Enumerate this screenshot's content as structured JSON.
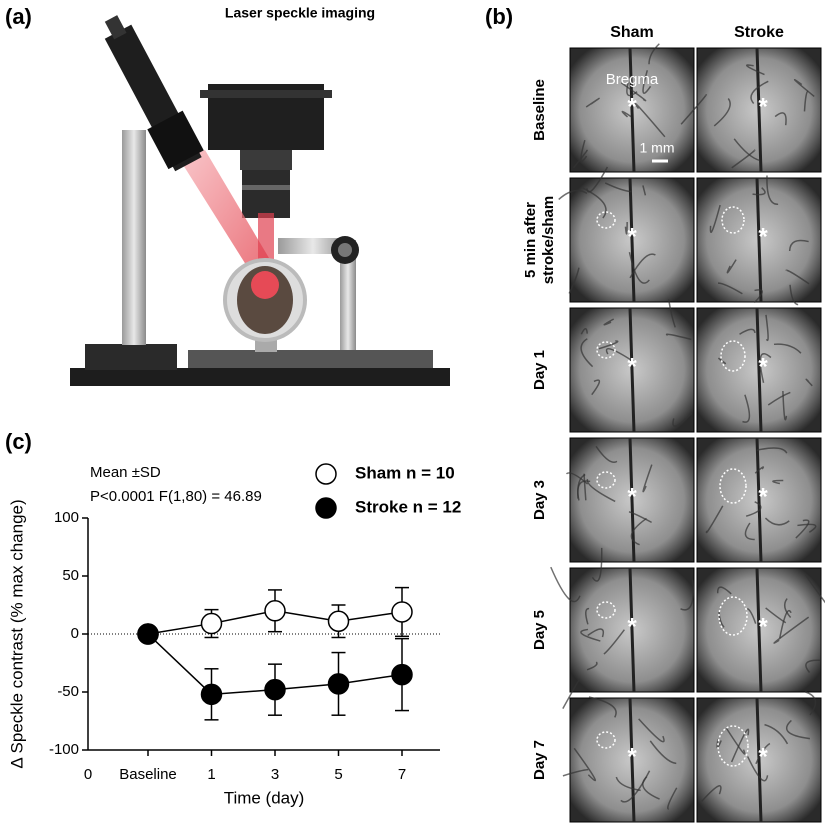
{
  "panel_a": {
    "label": "(a)",
    "title": "Laser speckle imaging"
  },
  "panel_b": {
    "label": "(b)",
    "columns": [
      "Sham",
      "Stroke"
    ],
    "rows": [
      [
        "Baseline"
      ],
      [
        "5 min after",
        "stroke/sham"
      ],
      [
        "Day 1"
      ],
      [
        "Day 3"
      ],
      [
        "Day 5"
      ],
      [
        "Day 7"
      ]
    ],
    "landmark": "Bregma",
    "scale_bar": "1 mm",
    "marker": "*"
  },
  "chart_data": {
    "type": "line",
    "panel_label": "(c)",
    "annotations": [
      "Mean ±SD",
      "P<0.0001 F(1,80) = 46.89"
    ],
    "x_label": "Time (day)",
    "y_label": "Δ Speckle contrast (% max change)",
    "x_origin_label": "0",
    "categories": [
      "Baseline",
      "1",
      "3",
      "5",
      "7"
    ],
    "series": [
      {
        "name": "Sham n = 10",
        "color": "#ffffff",
        "values": [
          0,
          9,
          20,
          11,
          19
        ],
        "errors": [
          0,
          12,
          18,
          14,
          21
        ]
      },
      {
        "name": "Stroke n = 12",
        "color": "#000000",
        "values": [
          0,
          -52,
          -48,
          -43,
          -35
        ],
        "errors": [
          0,
          22,
          22,
          27,
          31
        ]
      }
    ],
    "ylim": [
      -100,
      100
    ],
    "yticks": [
      -100,
      -50,
      0,
      50,
      100
    ],
    "zero_line": true
  }
}
